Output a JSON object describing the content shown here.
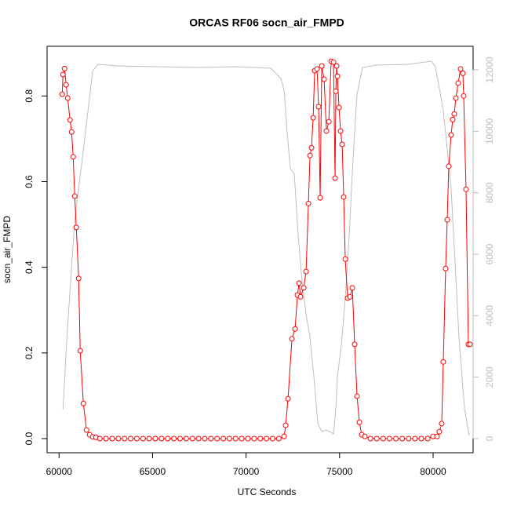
{
  "chart_data": {
    "type": "line",
    "title": "ORCAS RF06 socn_air_FMPD",
    "xlabel": "UTC Seconds",
    "ylabel": "socn_air_FMPD",
    "xlim": [
      59360,
      82140
    ],
    "xticks": [
      60000,
      65000,
      70000,
      75000,
      80000
    ],
    "ylim": [
      -0.033,
      0.916
    ],
    "yticks": [
      {
        "value": 0,
        "label": "0.0"
      },
      0.2,
      0.4,
      0.6,
      0.8
    ],
    "y2lim": [
      -460,
      12766
    ],
    "y2ticks": [
      0,
      2000,
      4000,
      6000,
      8000,
      10000,
      12000
    ],
    "y2color": "#bebebe",
    "series": [
      {
        "color": "#bebebe",
        "axis": "y2",
        "markers": false,
        "x": [
          60210,
          60419,
          60839,
          61258,
          61551,
          61803,
          62096,
          63145,
          67338,
          69434,
          71321,
          71866,
          72034,
          72201,
          72369,
          72579,
          72788,
          72998,
          73208,
          73417,
          73627,
          73837,
          74046,
          74256,
          74465,
          74675,
          74801,
          74885,
          75094,
          75304,
          75514,
          75723,
          75933,
          76226,
          76981,
          78658,
          79916,
          80126,
          80545,
          80964,
          81384,
          81677,
          81929
        ],
        "values": [
          944,
          3293,
          7123,
          9165,
          10697,
          11973,
          12178,
          12127,
          12076,
          12101,
          12050,
          11718,
          11335,
          9931,
          8782,
          8604,
          6612,
          5080,
          4059,
          3293,
          2017,
          485,
          230,
          281,
          230,
          153,
          996,
          2017,
          3038,
          4570,
          6612,
          9165,
          11208,
          12076,
          12152,
          12178,
          12280,
          12101,
          10697,
          8144,
          3293,
          996,
          102
        ]
      },
      {
        "color": "#ff0000",
        "axis": "y",
        "markers": true,
        "x": [
          60168,
          60210,
          60293,
          60377,
          60461,
          60587,
          60671,
          60755,
          60839,
          60922,
          61048,
          61132,
          61300,
          61468,
          61635,
          61803,
          61971,
          62180,
          62510,
          62840,
          63170,
          63500,
          63830,
          64160,
          64490,
          64820,
          65150,
          65480,
          65810,
          66140,
          66470,
          66800,
          67130,
          67460,
          67790,
          68120,
          68450,
          68780,
          69110,
          69440,
          69770,
          70100,
          70430,
          70760,
          71090,
          71420,
          71750,
          72034,
          72117,
          72243,
          72453,
          72621,
          72746,
          72830,
          72914,
          73082,
          73208,
          73333,
          73417,
          73501,
          73585,
          73669,
          73795,
          73878,
          73962,
          74046,
          74172,
          74298,
          74424,
          74549,
          74675,
          74759,
          74801,
          74843,
          74885,
          74969,
          75052,
          75136,
          75220,
          75304,
          75430,
          75556,
          75681,
          75807,
          75933,
          76059,
          76184,
          76352,
          76650,
          76990,
          77330,
          77670,
          78010,
          78350,
          78690,
          79030,
          79370,
          79710,
          80000,
          80210,
          80335,
          80461,
          80545,
          80671,
          80755,
          80839,
          80964,
          81048,
          81132,
          81216,
          81342,
          81468,
          81593,
          81635,
          81761,
          81887,
          81971
        ],
        "values": [
          0.804,
          0.85,
          0.864,
          0.826,
          0.795,
          0.744,
          0.716,
          0.658,
          0.566,
          0.493,
          0.374,
          0.205,
          0.082,
          0.02,
          0.009,
          0.004,
          0.003,
          0,
          0,
          0,
          0,
          0,
          0,
          0,
          0,
          0,
          0,
          0,
          0,
          0,
          0,
          0,
          0,
          0,
          0,
          0,
          0,
          0,
          0,
          0,
          0,
          0,
          0,
          0,
          0,
          0,
          0,
          0.005,
          0.031,
          0.093,
          0.233,
          0.256,
          0.335,
          0.363,
          0.331,
          0.352,
          0.39,
          0.549,
          0.661,
          0.679,
          0.749,
          0.859,
          0.863,
          0.775,
          0.562,
          0.87,
          0.839,
          0.718,
          0.74,
          0.881,
          0.879,
          0.608,
          0.811,
          0.87,
          0.846,
          0.773,
          0.718,
          0.687,
          0.564,
          0.419,
          0.328,
          0.331,
          0.352,
          0.22,
          0.099,
          0.038,
          0.009,
          0.005,
          0,
          0,
          0,
          0,
          0,
          0,
          0,
          0,
          0,
          0,
          0.005,
          0.005,
          0.016,
          0.035,
          0.179,
          0.397,
          0.511,
          0.636,
          0.709,
          0.745,
          0.758,
          0.795,
          0.83,
          0.863,
          0.853,
          0.8,
          0.582,
          0.22,
          0.22
        ]
      }
    ]
  }
}
